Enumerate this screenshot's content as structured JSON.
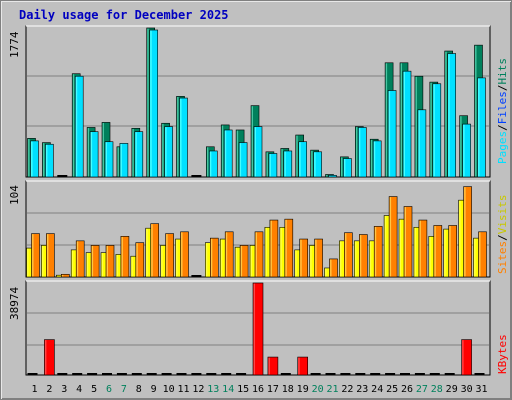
{
  "title": "Daily usage for December 2025",
  "colors": {
    "hits": "#00805c",
    "files": "#0040ff",
    "pages": "#00e0ff",
    "visits": "#ffff00",
    "sites": "#ff8000",
    "kbytes": "#ff0000",
    "weekend_label": "#00805c",
    "weekday_label": "#000000"
  },
  "chart_data": [
    {
      "type": "bar",
      "panel": "hits",
      "categories": [
        "1",
        "2",
        "3",
        "4",
        "5",
        "6",
        "7",
        "8",
        "9",
        "10",
        "11",
        "12",
        "13",
        "14",
        "15",
        "16",
        "17",
        "18",
        "19",
        "20",
        "21",
        "22",
        "23",
        "24",
        "25",
        "26",
        "27",
        "28",
        "29",
        "30",
        "31"
      ],
      "ymax_label": "1774",
      "ylim": [
        0,
        1774
      ],
      "grid": true,
      "series": [
        {
          "name": "Hits",
          "color": "#00805c",
          "values": [
            460,
            410,
            0,
            1230,
            590,
            650,
            360,
            580,
            1774,
            640,
            960,
            0,
            360,
            620,
            560,
            850,
            300,
            340,
            500,
            320,
            30,
            240,
            600,
            450,
            1360,
            1360,
            1200,
            1130,
            1500,
            730,
            1570
          ]
        },
        {
          "name": "Files",
          "color": "#0040ff",
          "values": [
            430,
            390,
            0,
            1200,
            540,
            420,
            400,
            540,
            1750,
            600,
            940,
            0,
            310,
            560,
            410,
            600,
            280,
            310,
            420,
            300,
            20,
            220,
            590,
            430,
            1030,
            1260,
            800,
            1110,
            1470,
            630,
            1180
          ]
        },
        {
          "name": "Pages",
          "color": "#00e0ff",
          "values": [
            430,
            390,
            0,
            1200,
            540,
            420,
            400,
            540,
            1750,
            600,
            940,
            0,
            310,
            560,
            410,
            600,
            280,
            310,
            420,
            300,
            20,
            220,
            590,
            430,
            1030,
            1260,
            800,
            1110,
            1470,
            630,
            1180
          ]
        }
      ],
      "right_labels": [
        "Pages",
        "Files",
        "Hits"
      ]
    },
    {
      "type": "bar",
      "panel": "visits",
      "categories": [
        "1",
        "2",
        "3",
        "4",
        "5",
        "6",
        "7",
        "8",
        "9",
        "10",
        "11",
        "12",
        "13",
        "14",
        "15",
        "16",
        "17",
        "18",
        "19",
        "20",
        "21",
        "22",
        "23",
        "24",
        "25",
        "26",
        "27",
        "28",
        "29",
        "30",
        "31"
      ],
      "ymax_label": "104",
      "ylim": [
        0,
        104
      ],
      "grid": true,
      "series": [
        {
          "name": "Sites",
          "color": "#ff8000",
          "values": [
            48,
            48,
            3,
            40,
            35,
            35,
            45,
            38,
            59,
            48,
            50,
            0,
            43,
            50,
            35,
            50,
            63,
            64,
            42,
            42,
            20,
            49,
            47,
            56,
            89,
            78,
            63,
            57,
            57,
            100,
            50
          ]
        },
        {
          "name": "Visits",
          "color": "#ffff00",
          "values": [
            32,
            35,
            2,
            30,
            27,
            27,
            25,
            23,
            54,
            35,
            42,
            0,
            38,
            42,
            33,
            35,
            55,
            55,
            30,
            35,
            10,
            40,
            40,
            40,
            68,
            64,
            55,
            45,
            53,
            85,
            43
          ]
        }
      ],
      "right_labels": [
        "Sites",
        "Visits"
      ]
    },
    {
      "type": "bar",
      "panel": "kbytes",
      "categories": [
        "1",
        "2",
        "3",
        "4",
        "5",
        "6",
        "7",
        "8",
        "9",
        "10",
        "11",
        "12",
        "13",
        "14",
        "15",
        "16",
        "17",
        "18",
        "19",
        "20",
        "21",
        "22",
        "23",
        "24",
        "25",
        "26",
        "27",
        "28",
        "29",
        "30",
        "31"
      ],
      "ymax_label": "38974",
      "ylim": [
        0,
        38974
      ],
      "grid": true,
      "series": [
        {
          "name": "KBytes",
          "color": "#ff0000",
          "values": [
            300,
            15000,
            300,
            300,
            300,
            300,
            300,
            300,
            300,
            300,
            300,
            300,
            300,
            300,
            300,
            38974,
            7600,
            300,
            7600,
            300,
            300,
            300,
            300,
            300,
            300,
            300,
            300,
            300,
            300,
            15000,
            300
          ]
        }
      ],
      "right_labels": [
        "KBytes"
      ]
    }
  ],
  "x_labels": [
    "1",
    "2",
    "3",
    "4",
    "5",
    "6",
    "7",
    "8",
    "9",
    "10",
    "11",
    "12",
    "13",
    "14",
    "15",
    "16",
    "17",
    "18",
    "19",
    "20",
    "21",
    "22",
    "23",
    "24",
    "25",
    "26",
    "27",
    "28",
    "29",
    "30",
    "31"
  ],
  "weekend_days": [
    6,
    7,
    13,
    14,
    20,
    21,
    27,
    28
  ]
}
